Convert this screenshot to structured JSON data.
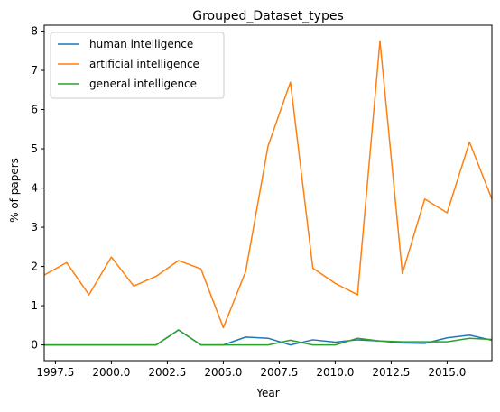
{
  "chart_data": {
    "type": "line",
    "title": "Grouped_Dataset_types",
    "xlabel": "Year",
    "ylabel": "% of papers",
    "xlim": [
      1997,
      2017
    ],
    "ylim": [
      -0.4,
      8.15
    ],
    "x_ticks": [
      1997.5,
      2000.0,
      2002.5,
      2005.0,
      2007.5,
      2010.0,
      2012.5,
      2015.0
    ],
    "x_tick_labels": [
      "1997.5",
      "2000.0",
      "2002.5",
      "2005.0",
      "2007.5",
      "2010.0",
      "2012.5",
      "2015.0"
    ],
    "y_ticks": [
      0,
      1,
      2,
      3,
      4,
      5,
      6,
      7,
      8
    ],
    "y_tick_labels": [
      "0",
      "1",
      "2",
      "3",
      "4",
      "5",
      "6",
      "7",
      "8"
    ],
    "grid": false,
    "legend_position": "upper-left",
    "x": [
      1997,
      1998,
      1999,
      2000,
      2001,
      2002,
      2003,
      2004,
      2005,
      2006,
      2007,
      2008,
      2009,
      2010,
      2011,
      2012,
      2013,
      2014,
      2015,
      2016,
      2017
    ],
    "series": [
      {
        "name": "human intelligence",
        "color": "#1f77b4",
        "values": [
          0,
          0,
          0,
          0,
          0,
          0,
          0.38,
          0,
          0,
          0.2,
          0.17,
          0,
          0.13,
          0.07,
          0.13,
          0.1,
          0.05,
          0.04,
          0.18,
          0.25,
          0.12
        ]
      },
      {
        "name": "artificial intelligence",
        "color": "#ff7f0e",
        "values": [
          1.78,
          2.1,
          1.28,
          2.24,
          1.5,
          1.75,
          2.15,
          1.94,
          0.44,
          1.87,
          5.07,
          6.7,
          1.96,
          1.57,
          1.28,
          7.75,
          1.82,
          3.72,
          3.37,
          5.17,
          3.72
        ]
      },
      {
        "name": "general intelligence",
        "color": "#2ca02c",
        "values": [
          0,
          0,
          0,
          0,
          0,
          0,
          0.38,
          0,
          0,
          0,
          0,
          0.12,
          0,
          0,
          0.17,
          0.1,
          0.08,
          0.08,
          0.08,
          0.17,
          0.14
        ]
      }
    ]
  }
}
